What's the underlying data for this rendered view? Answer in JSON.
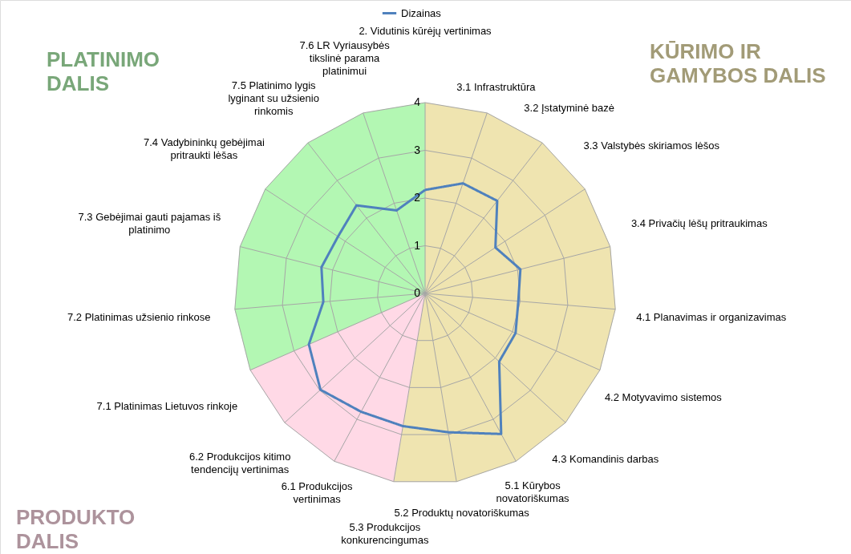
{
  "chart_data": {
    "type": "radar",
    "categories": [
      "2. Vidutinis kūrėjų vertinimas",
      "3.1 Infrastruktūra",
      "3.2 Įstatyminė bazė",
      "3.3 Valstybės skiriamos lėšos",
      "3.4 Privačių lėšų pritraukimas",
      "4.1 Planavimas ir organizavimas",
      "4.2 Motyvavimo sistemos",
      "4.3 Komandinis darbas",
      "5.1 Kūrybos novatoriškumas",
      "5.2 Produktų novatoriškumas",
      "5.3 Produkcijos konkurencingumas",
      "6.1 Produkcijos vertinimas",
      "6.2 Produkcijos kitimo tendencijų vertinimas",
      "7.1 Platinimas Lietuvos rinkoje",
      "7.2 Platinimas užsienio rinkose",
      "7.3 Gebėjimai gauti pajamas iš platinimo",
      "7.4 Vadybininkų gebėjimai pritraukti lėšas",
      "7.5 Platinimo lygis lyginant su užsienio rinkomis",
      "7.6 LR Vyriausybės tikslinė parama platinimui"
    ],
    "series": [
      {
        "type": "area",
        "color": "#efe4b0",
        "values": [
          4,
          4,
          4,
          4,
          4,
          4,
          4,
          4,
          4,
          4,
          4,
          0,
          0,
          0,
          0,
          0,
          0,
          0,
          0
        ]
      },
      {
        "type": "area",
        "color": "#ffd9e6",
        "values": [
          0,
          0,
          0,
          0,
          0,
          0,
          0,
          0,
          0,
          0,
          4,
          4,
          4,
          4,
          0,
          0,
          0,
          0,
          0
        ]
      },
      {
        "type": "area",
        "color": "#b3f7b3",
        "values": [
          4,
          0,
          0,
          0,
          0,
          0,
          0,
          0,
          0,
          0,
          0,
          0,
          0,
          4,
          4,
          4,
          4,
          4,
          4
        ]
      },
      {
        "name": "Dizainas",
        "color": "#4f81bd",
        "values": [
          2.17,
          2.44,
          2.46,
          1.76,
          2.06,
          1.96,
          2.07,
          2.11,
          3.35,
          2.95,
          2.82,
          2.82,
          2.98,
          2.66,
          2.14,
          2.24,
          2.18,
          2.34,
          1.84
        ]
      }
    ],
    "ylim": [
      0,
      4
    ],
    "yticks": [
      0,
      1,
      2,
      3,
      4
    ],
    "grid": true,
    "legend": "top",
    "marker": "none",
    "line_style": "solid",
    "annotations": [
      "PLATINIMO DALIS",
      "KŪRIMO IR GAMYBOS DALIS",
      "PRODUKTO DALIS"
    ]
  }
}
